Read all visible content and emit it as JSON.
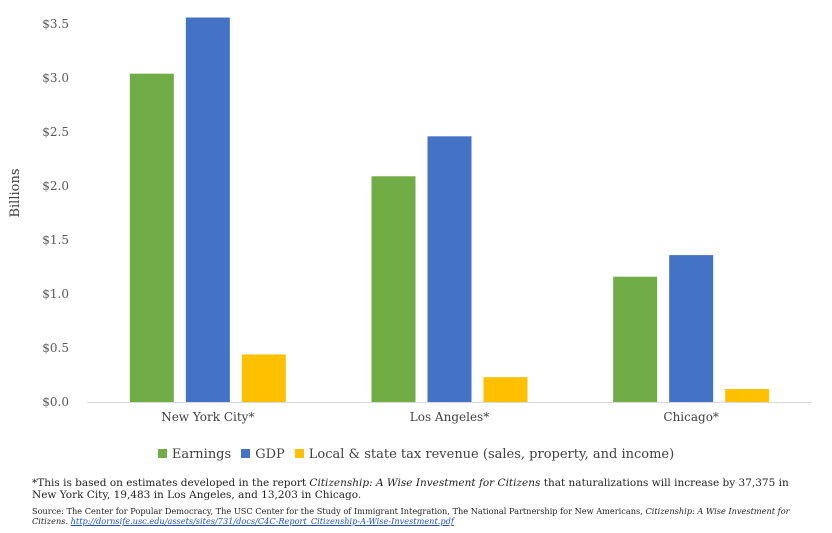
{
  "chart_data": {
    "type": "bar",
    "categories": [
      "New York City*",
      "Los Angeles*",
      "Chicago*"
    ],
    "series": [
      {
        "name": "Earnings",
        "color": "#70ad47",
        "values": [
          3.04,
          2.09,
          1.16
        ]
      },
      {
        "name": "GDP",
        "color": "#4472c4",
        "values": [
          3.56,
          2.46,
          1.36
        ]
      },
      {
        "name": "Local & state tax revenue (sales, property, and income)",
        "color": "#ffc000",
        "values": [
          0.44,
          0.23,
          0.12
        ]
      }
    ],
    "ylabel": "Billions",
    "ylim": [
      0,
      3.5
    ],
    "yticks": [
      "$0.0",
      "$0.5",
      "$1.0",
      "$1.5",
      "$2.0",
      "$2.5",
      "$3.0",
      "$3.5"
    ],
    "legend_position": "bottom",
    "grid": false
  },
  "footnote": {
    "prefix": "*This is based on estimates developed in the report ",
    "title": "Citizenship: A Wise Investment for Citizens",
    "suffix": " that naturalizations will increase by 37,375 in New York City, 19,483 in Los Angeles, and 13,203 in Chicago."
  },
  "source": {
    "prefix": "Source: The Center for Popular Democracy, The USC Center for the Study of Immigrant Integration, The National Partnership for New Americans, ",
    "title": "Citizenship: A Wise Investment for Citizens",
    "sep": ". ",
    "link": "http://dornsife.usc.edu/assets/sites/731/docs/C4C-Report_Citizenship-A-Wise-Investment.pdf"
  }
}
